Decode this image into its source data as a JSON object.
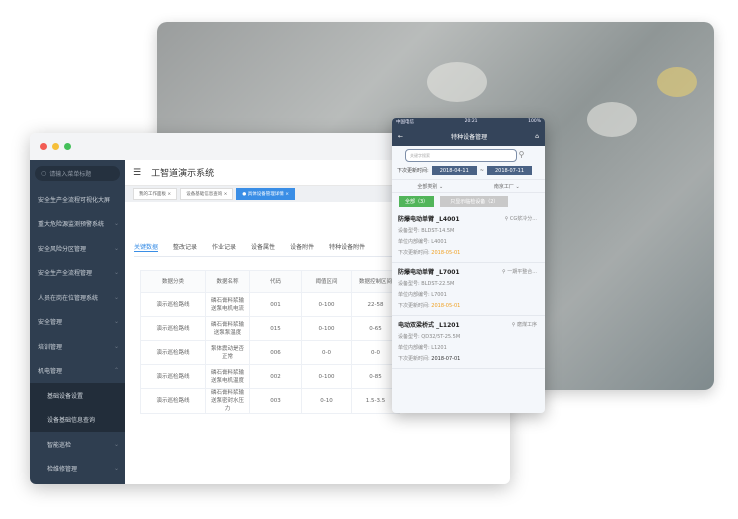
{
  "desktop": {
    "search_placeholder": "请输入菜单标题",
    "menu": [
      {
        "label": "安全生产全流程可视化大屏",
        "chevron": ""
      },
      {
        "label": "重大危险源监测预警系统",
        "chevron": "⌄"
      },
      {
        "label": "安全风险分区管理",
        "chevron": "⌄"
      },
      {
        "label": "安全生产全流程管理",
        "chevron": "⌄"
      },
      {
        "label": "人员在岗在位管理系统",
        "chevron": "⌄"
      },
      {
        "label": "安全管理",
        "chevron": "⌄"
      },
      {
        "label": "培训管理",
        "chevron": "⌄"
      },
      {
        "label": "机电管理",
        "chevron": "⌃"
      }
    ],
    "submenu": [
      {
        "label": "基础设备设置"
      },
      {
        "label": "设备基础信息查询"
      },
      {
        "label": "智能巡检",
        "chevron": "⌄"
      },
      {
        "label": "检维修管理",
        "chevron": "⌄"
      }
    ],
    "title": "工智道演示系统",
    "tags": [
      "我的工作面板",
      "设备基础信息查询",
      "具体设备管理详情"
    ],
    "tabs": [
      "关键数据",
      "整改记录",
      "作业记录",
      "设备属性",
      "设备附件",
      "特种设备附件"
    ],
    "table": {
      "headers": [
        "数据分类",
        "数据名称",
        "代码",
        "阈值区间",
        "数据控制区间"
      ],
      "rows": [
        [
          "演示巡检路线",
          "磷石膏料浆输送泵电机电流",
          "001",
          "0-100",
          "22-58"
        ],
        [
          "演示巡检路线",
          "磷石膏料浆输送泵泵温度",
          "015",
          "0-100",
          "0-65"
        ],
        [
          "演示巡检路线",
          "泵体震动是否正常",
          "006",
          "0-0",
          "0-0"
        ],
        [
          "演示巡检路线",
          "磷石膏料浆输送泵电机温度",
          "002",
          "0-100",
          "0-85"
        ],
        [
          "演示巡检路线",
          "磷石膏料浆输送泵密封水压力",
          "003",
          "0-10",
          "1.5-3.5"
        ]
      ]
    }
  },
  "phone": {
    "carrier": "中国电信",
    "time": "20:21",
    "battery": "100%",
    "title": "特种设备管理",
    "search_placeholder": "关键字搜索",
    "date_label": "下次更新时间:",
    "date_from": "2018-04-11",
    "date_sep": "~",
    "date_to": "2018-07-11",
    "filter_type": "全部类别",
    "filter_factory": "南京工厂",
    "btn_all": "全部（3）",
    "btn_filter": "只显示临检设备（2）",
    "items": [
      {
        "name": "防爆电动单臂 _L4001",
        "location": "CG浆冷分...",
        "model_label": "设备型号:",
        "model": "BLDST-14.5M",
        "code_label": "单位内部编号:",
        "code": "L4001",
        "next_label": "下次更新时间:",
        "next": "2018-05-01",
        "overdue": true
      },
      {
        "name": "防爆电动单臂 _L7001",
        "location": "一期平整合...",
        "model_label": "设备型号:",
        "model": "BLDST-22.5M",
        "code_label": "单位内部编号:",
        "code": "L7001",
        "next_label": "下次更新时间:",
        "next": "2018-05-01",
        "overdue": true
      },
      {
        "name": "电动双梁桥式 _L1201",
        "location": "磨煤工序",
        "model_label": "设备型号:",
        "model": "QD32/5T-25.5M",
        "code_label": "单位内部编号:",
        "code": "L1201",
        "next_label": "下次更新时间:",
        "next": "2018-07-01",
        "overdue": false
      }
    ]
  }
}
